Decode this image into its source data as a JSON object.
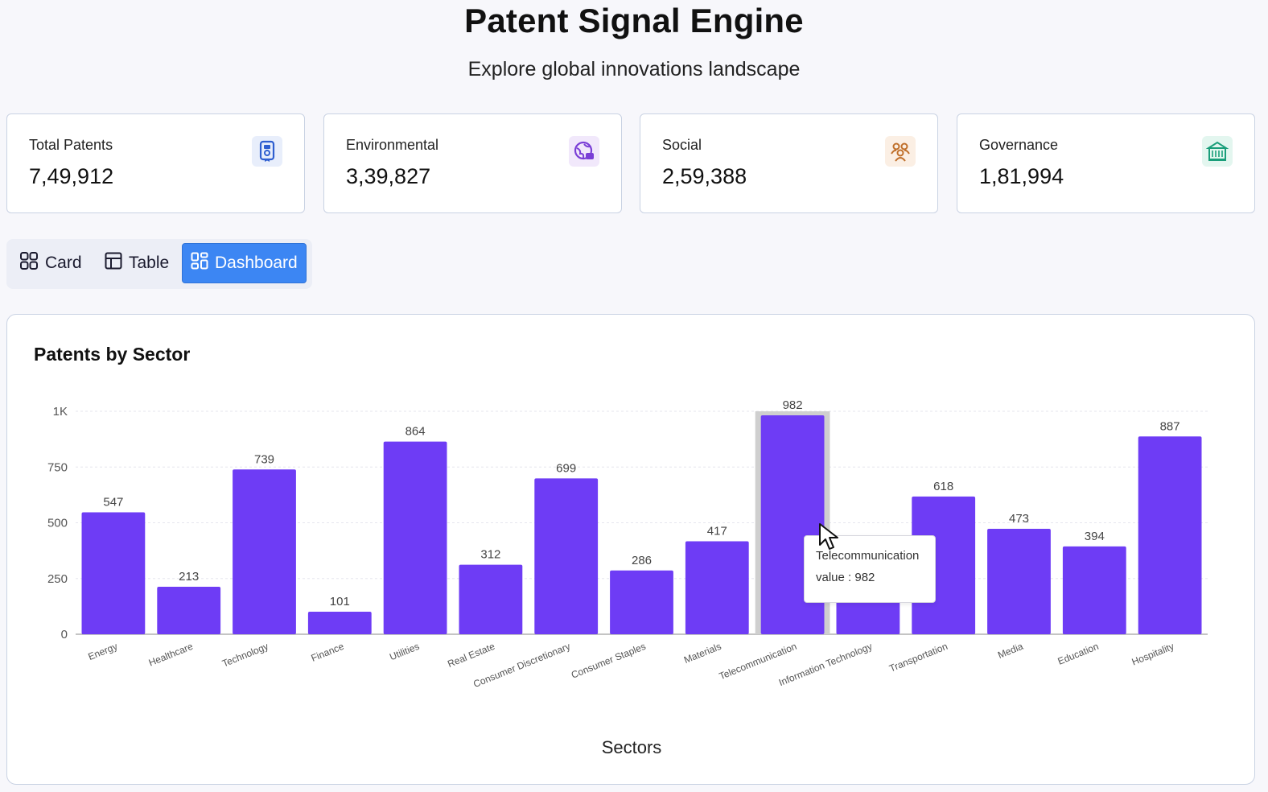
{
  "header": {
    "title": "Patent Signal Engine",
    "subtitle": "Explore global innovations landscape"
  },
  "stats": [
    {
      "label": "Total Patents",
      "value": "7,49,912",
      "icon": "patent-badge-icon",
      "color": "#2f5fd0"
    },
    {
      "label": "Environmental",
      "value": "3,39,827",
      "icon": "globe-leaf-icon",
      "color": "#7a3fd6"
    },
    {
      "label": "Social",
      "value": "2,59,388",
      "icon": "people-icon",
      "color": "#c0702c"
    },
    {
      "label": "Governance",
      "value": "1,81,994",
      "icon": "government-building-icon",
      "color": "#1a9e7a"
    }
  ],
  "view_toggle": {
    "card": "Card",
    "table": "Table",
    "dashboard": "Dashboard",
    "active": "Dashboard"
  },
  "chart_data": {
    "type": "bar",
    "title": "Patents by Sector",
    "xlabel": "Sectors",
    "ylabel": "",
    "ylim": [
      0,
      1000
    ],
    "yticks": [
      0,
      250,
      500,
      750,
      1000
    ],
    "ytick_labels": [
      "0",
      "250",
      "500",
      "750",
      "1K"
    ],
    "categories": [
      "Energy",
      "Healthcare",
      "Technology",
      "Finance",
      "Utilities",
      "Real Estate",
      "Consumer Discretionary",
      "Consumer Staples",
      "Materials",
      "Telecommunication",
      "Information Technology",
      "Transportation",
      "Media",
      "Education",
      "Hospitality"
    ],
    "values": [
      547,
      213,
      739,
      101,
      864,
      312,
      699,
      286,
      417,
      982,
      430,
      618,
      473,
      394,
      887
    ],
    "value_labels": [
      "547",
      "213",
      "739",
      "101",
      "864",
      "312",
      "699",
      "286",
      "417",
      "982",
      "",
      "618",
      "473",
      "394",
      "887"
    ],
    "bar_color": "#6e3cf5",
    "grid": true,
    "highlighted": "Telecommunication"
  },
  "tooltip": {
    "category": "Telecommunication",
    "value_text": "value : 982"
  }
}
